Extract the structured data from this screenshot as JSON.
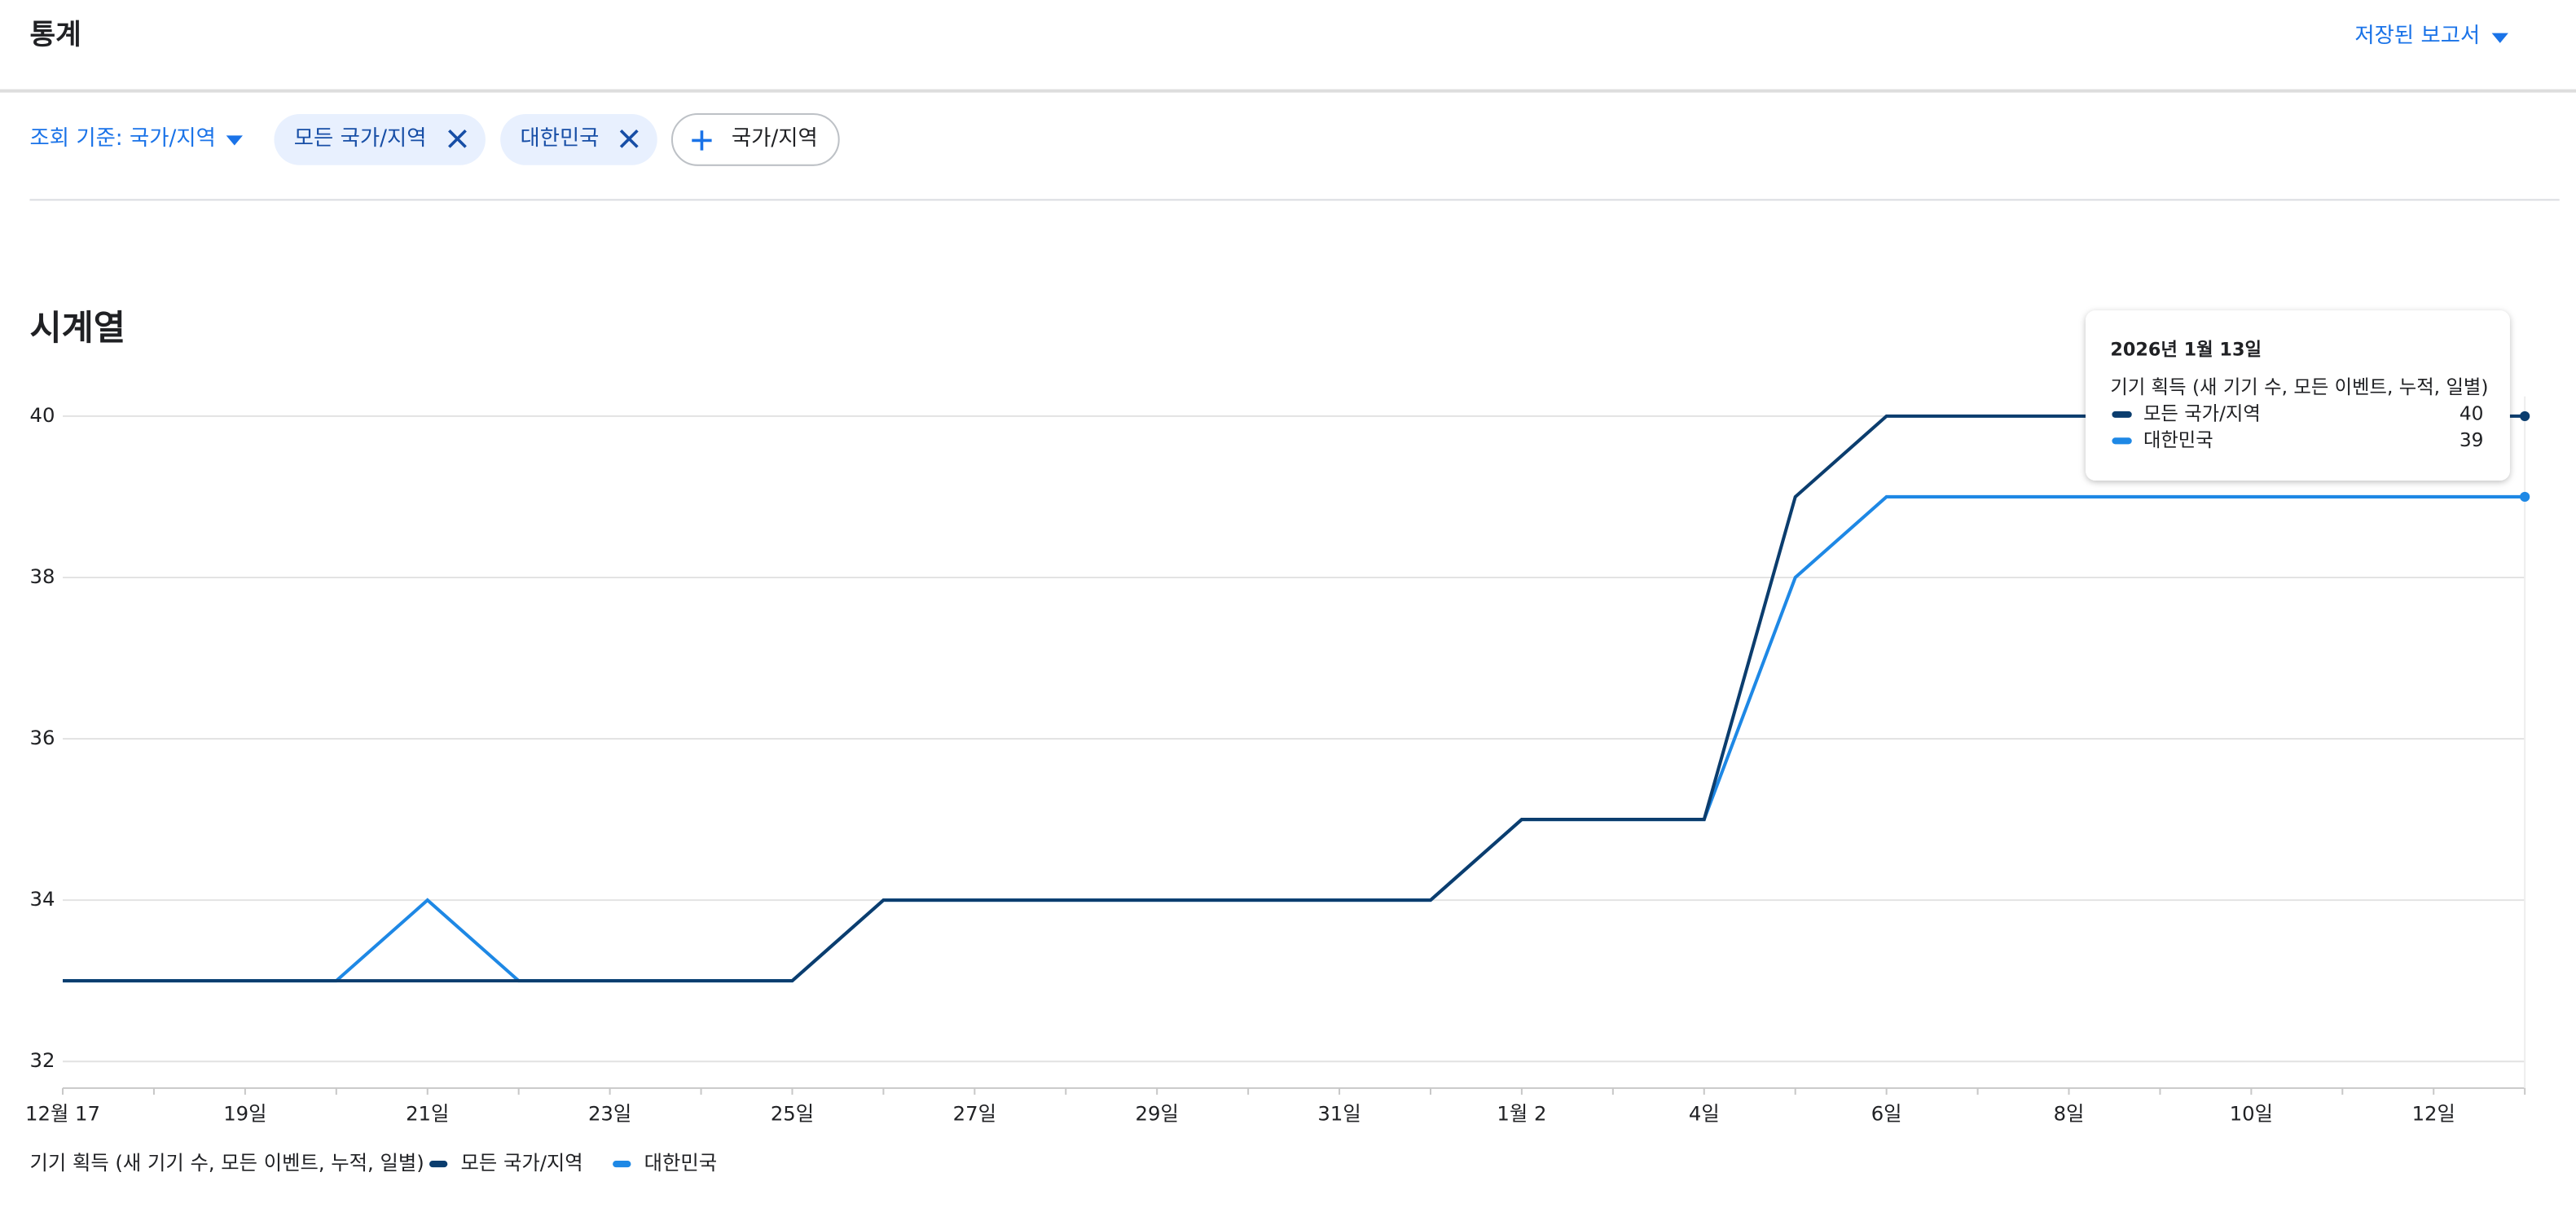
{
  "header": {
    "title": "통계",
    "saved_reports": "저장된 보고서"
  },
  "filters": {
    "view_by": "조회 기준: 국가/지역",
    "add_label": "국가/지역"
  },
  "section_title": "시계열",
  "chart_data": {
    "type": "line",
    "metric": "기기 획득 (새 기기 수, 모든 이벤트, 누적, 일별)",
    "categories": [
      "12월 17",
      null,
      "19일",
      null,
      "21일",
      null,
      "23일",
      null,
      "25일",
      null,
      "27일",
      null,
      "29일",
      null,
      "31일",
      null,
      "1월 2",
      null,
      "4일",
      null,
      "6일",
      null,
      "8일",
      null,
      "10일",
      null,
      "12일",
      null
    ],
    "series": [
      {
        "name": "모든 국가/지역",
        "color": "#0b3d6e",
        "values": [
          33,
          33,
          33,
          33,
          33,
          33,
          33,
          33,
          33,
          34,
          34,
          34,
          34,
          34,
          34,
          34,
          35,
          35,
          35,
          39,
          40,
          40,
          40,
          40,
          40,
          40,
          40,
          40
        ]
      },
      {
        "name": "대한민국",
        "color": "#1e88e5",
        "values": [
          33,
          33,
          33,
          33,
          34,
          33,
          33,
          33,
          33,
          34,
          34,
          34,
          34,
          34,
          34,
          34,
          35,
          35,
          35,
          38,
          39,
          39,
          39,
          39,
          39,
          39,
          39,
          39
        ]
      }
    ],
    "ylim": [
      31.67,
      40
    ],
    "yticks": [
      32,
      34,
      36,
      38,
      40
    ],
    "grid": true,
    "tooltip": {
      "date": "2026년 1월 13일"
    }
  }
}
